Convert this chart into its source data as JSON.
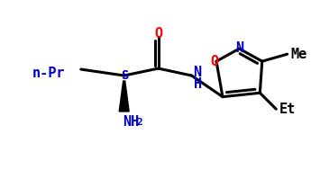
{
  "bg_color": "#ffffff",
  "atom_color": "#000000",
  "O_color": "#ff0000",
  "N_color": "#0000cd",
  "bond_lw": 2.2,
  "font_size": 11,
  "figsize": [
    3.45,
    1.89
  ],
  "dpi": 100,
  "xlim": [
    0,
    345
  ],
  "ylim": [
    0,
    189
  ]
}
